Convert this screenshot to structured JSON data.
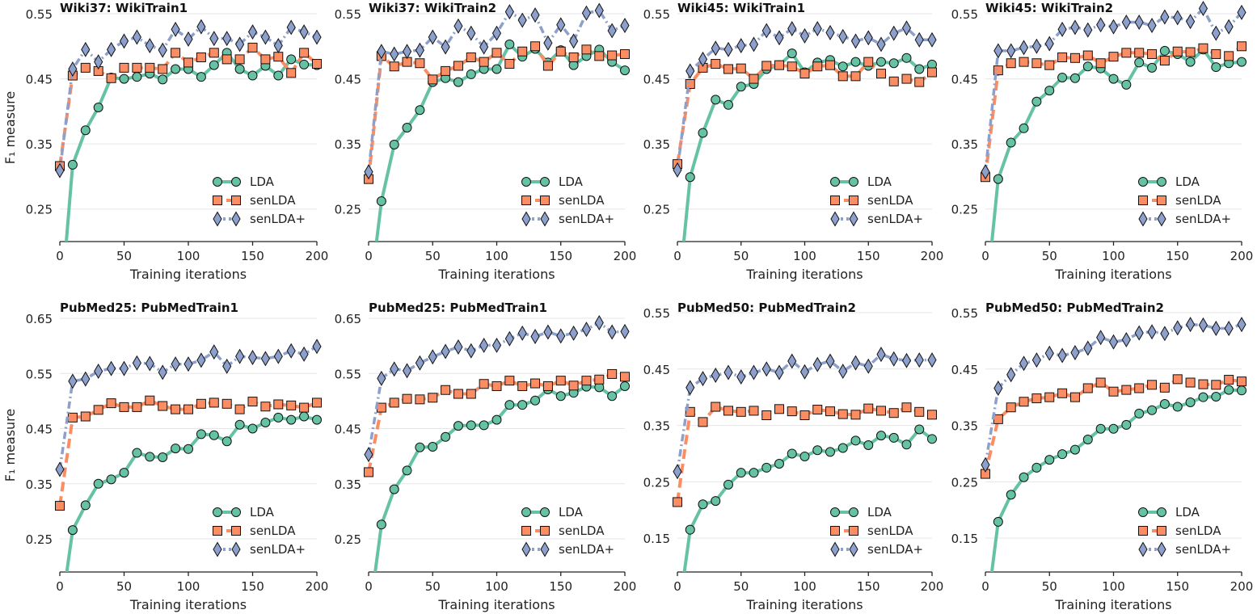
{
  "colors": {
    "LDA": "#66c2a5",
    "senLDA": "#fc8d62",
    "senLDA+": "#8da0cb",
    "grid": "#e6e6e6",
    "axis": "#222222"
  },
  "chart_data": [
    {
      "type": "line",
      "title": "Wiki37: WikiTrain1",
      "xlabel": "Training iterations",
      "ylabel": "F₁ measure",
      "xlim": [
        0,
        200
      ],
      "ylim": [
        0.2,
        0.55
      ],
      "xticks": [
        0,
        50,
        100,
        150,
        200
      ],
      "yticks": [
        0.25,
        0.35,
        0.45,
        0.55
      ],
      "grid": "horizontal",
      "legend": "lower-right",
      "x": [
        0,
        10,
        20,
        30,
        40,
        50,
        60,
        70,
        80,
        90,
        100,
        110,
        120,
        130,
        140,
        150,
        160,
        170,
        180,
        190,
        200
      ],
      "series": [
        {
          "name": "LDA",
          "marker": "circle",
          "line": "solid",
          "values": [
            0.08,
            0.318,
            0.371,
            0.406,
            0.452,
            0.45,
            0.453,
            0.458,
            0.449,
            0.465,
            0.465,
            0.453,
            0.471,
            0.49,
            0.465,
            0.455,
            0.47,
            0.455,
            0.48,
            0.472,
            0.471
          ]
        },
        {
          "name": "senLDA",
          "marker": "square",
          "line": "dashed",
          "values": [
            0.316,
            0.455,
            0.467,
            0.462,
            0.451,
            0.467,
            0.467,
            0.467,
            0.465,
            0.49,
            0.475,
            0.483,
            0.49,
            0.48,
            0.48,
            0.498,
            0.48,
            0.484,
            0.459,
            0.49,
            0.473
          ]
        },
        {
          "name": "senLDA+",
          "marker": "diamond",
          "line": "dashdot",
          "values": [
            0.309,
            0.465,
            0.495,
            0.476,
            0.495,
            0.508,
            0.514,
            0.501,
            0.494,
            0.526,
            0.511,
            0.53,
            0.512,
            0.512,
            0.503,
            0.522,
            0.514,
            0.501,
            0.529,
            0.522,
            0.514
          ]
        }
      ]
    },
    {
      "type": "line",
      "title": "Wiki37: WikiTrain2",
      "xlabel": "Training iterations",
      "ylabel": "",
      "xlim": [
        0,
        200
      ],
      "ylim": [
        0.2,
        0.55
      ],
      "xticks": [
        0,
        50,
        100,
        150,
        200
      ],
      "yticks": [
        0.25,
        0.35,
        0.45,
        0.55
      ],
      "grid": "horizontal",
      "legend": "lower-right",
      "x": [
        0,
        10,
        20,
        30,
        40,
        50,
        60,
        70,
        80,
        90,
        100,
        110,
        120,
        130,
        140,
        150,
        160,
        170,
        180,
        190,
        200
      ],
      "series": [
        {
          "name": "LDA",
          "marker": "circle",
          "line": "solid",
          "values": [
            0.1,
            0.262,
            0.349,
            0.375,
            0.402,
            0.445,
            0.451,
            0.445,
            0.457,
            0.465,
            0.465,
            0.503,
            0.484,
            0.496,
            0.475,
            0.494,
            0.471,
            0.485,
            0.495,
            0.476,
            0.463
          ]
        },
        {
          "name": "senLDA",
          "marker": "square",
          "line": "dashed",
          "values": [
            0.296,
            0.485,
            0.469,
            0.476,
            0.474,
            0.449,
            0.462,
            0.47,
            0.483,
            0.476,
            0.49,
            0.473,
            0.492,
            0.5,
            0.47,
            0.492,
            0.483,
            0.495,
            0.485,
            0.486,
            0.488
          ]
        },
        {
          "name": "senLDA+",
          "marker": "diamond",
          "line": "dashdot",
          "values": [
            0.307,
            0.492,
            0.488,
            0.492,
            0.494,
            0.514,
            0.499,
            0.531,
            0.52,
            0.499,
            0.52,
            0.553,
            0.54,
            0.548,
            0.505,
            0.533,
            0.508,
            0.551,
            0.555,
            0.524,
            0.532
          ]
        }
      ]
    },
    {
      "type": "line",
      "title": "Wiki45: WikiTrain1",
      "xlabel": "Training iterations",
      "ylabel": "",
      "xlim": [
        0,
        200
      ],
      "ylim": [
        0.2,
        0.55
      ],
      "xticks": [
        0,
        50,
        100,
        150,
        200
      ],
      "yticks": [
        0.25,
        0.35,
        0.45,
        0.55
      ],
      "grid": "horizontal",
      "legend": "lower-right",
      "x": [
        0,
        10,
        20,
        30,
        40,
        50,
        60,
        70,
        80,
        90,
        100,
        110,
        120,
        130,
        140,
        150,
        160,
        170,
        180,
        190,
        200
      ],
      "series": [
        {
          "name": "LDA",
          "marker": "circle",
          "line": "solid",
          "values": [
            0.1,
            0.299,
            0.367,
            0.418,
            0.41,
            0.438,
            0.442,
            0.465,
            0.471,
            0.489,
            0.46,
            0.475,
            0.479,
            0.469,
            0.476,
            0.47,
            0.476,
            0.474,
            0.482,
            0.465,
            0.472
          ]
        },
        {
          "name": "senLDA",
          "marker": "square",
          "line": "dashed",
          "values": [
            0.319,
            0.442,
            0.467,
            0.473,
            0.465,
            0.466,
            0.45,
            0.47,
            0.471,
            0.469,
            0.458,
            0.469,
            0.471,
            0.454,
            0.454,
            0.476,
            0.458,
            0.446,
            0.45,
            0.445,
            0.46
          ]
        },
        {
          "name": "senLDA+",
          "marker": "diamond",
          "line": "dashdot",
          "values": [
            0.31,
            0.462,
            0.48,
            0.497,
            0.495,
            0.501,
            0.503,
            0.524,
            0.513,
            0.527,
            0.516,
            0.527,
            0.521,
            0.515,
            0.508,
            0.513,
            0.503,
            0.52,
            0.528,
            0.51,
            0.51
          ]
        }
      ]
    },
    {
      "type": "line",
      "title": "Wiki45: WikiTrain2",
      "xlabel": "Training iterations",
      "ylabel": "",
      "xlim": [
        0,
        200
      ],
      "ylim": [
        0.2,
        0.55
      ],
      "xticks": [
        0,
        50,
        100,
        150,
        200
      ],
      "yticks": [
        0.25,
        0.35,
        0.45,
        0.55
      ],
      "grid": "horizontal",
      "legend": "lower-right",
      "x": [
        0,
        10,
        20,
        30,
        40,
        50,
        60,
        70,
        80,
        90,
        100,
        110,
        120,
        130,
        140,
        150,
        160,
        170,
        180,
        190,
        200
      ],
      "series": [
        {
          "name": "LDA",
          "marker": "circle",
          "line": "solid",
          "values": [
            0.1,
            0.296,
            0.352,
            0.374,
            0.415,
            0.432,
            0.452,
            0.451,
            0.469,
            0.466,
            0.45,
            0.441,
            0.475,
            0.467,
            0.493,
            0.488,
            0.476,
            0.495,
            0.468,
            0.474,
            0.476
          ]
        },
        {
          "name": "senLDA",
          "marker": "square",
          "line": "dashed",
          "values": [
            0.299,
            0.463,
            0.474,
            0.476,
            0.474,
            0.471,
            0.483,
            0.482,
            0.486,
            0.474,
            0.484,
            0.49,
            0.49,
            0.488,
            0.478,
            0.492,
            0.491,
            0.497,
            0.488,
            0.485,
            0.5
          ]
        },
        {
          "name": "senLDA+",
          "marker": "diamond",
          "line": "dashdot",
          "values": [
            0.307,
            0.493,
            0.493,
            0.498,
            0.5,
            0.504,
            0.526,
            0.529,
            0.525,
            0.533,
            0.53,
            0.537,
            0.537,
            0.532,
            0.545,
            0.544,
            0.538,
            0.558,
            0.52,
            0.53,
            0.552
          ]
        }
      ]
    },
    {
      "type": "line",
      "title": "PubMed25: PubMedTrain1",
      "xlabel": "Training iterations",
      "ylabel": "F₁ measure",
      "xlim": [
        0,
        200
      ],
      "ylim": [
        0.19,
        0.65
      ],
      "xticks": [
        0,
        50,
        100,
        150,
        200
      ],
      "yticks": [
        0.25,
        0.35,
        0.45,
        0.55,
        0.65
      ],
      "grid": "horizontal",
      "legend": "lower-right",
      "x": [
        0,
        10,
        20,
        30,
        40,
        50,
        60,
        70,
        80,
        90,
        100,
        110,
        120,
        130,
        140,
        150,
        160,
        170,
        180,
        190,
        200
      ],
      "series": [
        {
          "name": "LDA",
          "marker": "circle",
          "line": "solid",
          "values": [
            0.1,
            0.266,
            0.311,
            0.35,
            0.358,
            0.37,
            0.406,
            0.399,
            0.398,
            0.414,
            0.413,
            0.44,
            0.438,
            0.427,
            0.457,
            0.45,
            0.461,
            0.47,
            0.466,
            0.472,
            0.466
          ]
        },
        {
          "name": "senLDA",
          "marker": "square",
          "line": "dashed",
          "values": [
            0.31,
            0.47,
            0.472,
            0.484,
            0.496,
            0.489,
            0.489,
            0.501,
            0.491,
            0.485,
            0.485,
            0.495,
            0.497,
            0.495,
            0.485,
            0.499,
            0.49,
            0.494,
            0.492,
            0.488,
            0.497
          ]
        },
        {
          "name": "senLDA+",
          "marker": "diamond",
          "line": "dashdot",
          "values": [
            0.376,
            0.536,
            0.54,
            0.554,
            0.559,
            0.559,
            0.569,
            0.568,
            0.552,
            0.567,
            0.567,
            0.574,
            0.589,
            0.563,
            0.581,
            0.579,
            0.577,
            0.581,
            0.591,
            0.585,
            0.599
          ]
        }
      ]
    },
    {
      "type": "line",
      "title": "PubMed25: PubMedTrain1",
      "xlabel": "Training iterations",
      "ylabel": "",
      "xlim": [
        0,
        200
      ],
      "ylim": [
        0.19,
        0.65
      ],
      "xticks": [
        0,
        50,
        100,
        150,
        200
      ],
      "yticks": [
        0.25,
        0.35,
        0.45,
        0.55,
        0.65
      ],
      "grid": "horizontal",
      "legend": "lower-right",
      "x": [
        0,
        10,
        20,
        30,
        40,
        50,
        60,
        70,
        80,
        90,
        100,
        110,
        120,
        130,
        140,
        150,
        160,
        170,
        180,
        190,
        200
      ],
      "series": [
        {
          "name": "LDA",
          "marker": "circle",
          "line": "solid",
          "values": [
            0.1,
            0.276,
            0.34,
            0.374,
            0.416,
            0.417,
            0.435,
            0.455,
            0.456,
            0.456,
            0.466,
            0.493,
            0.493,
            0.501,
            0.521,
            0.509,
            0.515,
            0.526,
            0.525,
            0.509,
            0.527
          ]
        },
        {
          "name": "senLDA",
          "marker": "square",
          "line": "dashed",
          "values": [
            0.371,
            0.488,
            0.497,
            0.504,
            0.503,
            0.506,
            0.52,
            0.513,
            0.513,
            0.531,
            0.527,
            0.537,
            0.527,
            0.532,
            0.527,
            0.537,
            0.528,
            0.537,
            0.539,
            0.549,
            0.544
          ]
        },
        {
          "name": "senLDA+",
          "marker": "diamond",
          "line": "dashdot",
          "values": [
            0.403,
            0.541,
            0.558,
            0.555,
            0.569,
            0.58,
            0.59,
            0.598,
            0.591,
            0.601,
            0.601,
            0.613,
            0.623,
            0.617,
            0.625,
            0.618,
            0.623,
            0.63,
            0.642,
            0.625,
            0.626
          ]
        }
      ]
    },
    {
      "type": "line",
      "title": "PubMed50: PubMedTrain2",
      "xlabel": "Training iterations",
      "ylabel": "",
      "xlim": [
        0,
        200
      ],
      "ylim": [
        0.09,
        0.55
      ],
      "xticks": [
        0,
        50,
        100,
        150,
        200
      ],
      "yticks": [
        0.15,
        0.25,
        0.35,
        0.45,
        0.55
      ],
      "grid": "horizontal",
      "legend": "lower-right",
      "x": [
        0,
        10,
        20,
        30,
        40,
        50,
        60,
        70,
        80,
        90,
        100,
        110,
        120,
        130,
        140,
        150,
        160,
        170,
        180,
        190,
        200
      ],
      "series": [
        {
          "name": "LDA",
          "marker": "circle",
          "line": "solid",
          "values": [
            0.0,
            0.165,
            0.21,
            0.216,
            0.245,
            0.266,
            0.266,
            0.275,
            0.282,
            0.3,
            0.295,
            0.306,
            0.303,
            0.31,
            0.323,
            0.315,
            0.332,
            0.328,
            0.316,
            0.343,
            0.326
          ]
        },
        {
          "name": "senLDA",
          "marker": "square",
          "line": "dashed",
          "values": [
            0.214,
            0.374,
            0.356,
            0.383,
            0.376,
            0.374,
            0.376,
            0.368,
            0.379,
            0.375,
            0.368,
            0.378,
            0.375,
            0.37,
            0.369,
            0.38,
            0.376,
            0.372,
            0.382,
            0.374,
            0.369
          ]
        },
        {
          "name": "senLDA+",
          "marker": "diamond",
          "line": "dashdot",
          "values": [
            0.268,
            0.417,
            0.433,
            0.439,
            0.444,
            0.436,
            0.444,
            0.45,
            0.444,
            0.464,
            0.445,
            0.458,
            0.464,
            0.446,
            0.461,
            0.455,
            0.476,
            0.468,
            0.465,
            0.466,
            0.466
          ]
        }
      ]
    },
    {
      "type": "line",
      "title": "PubMed50: PubMedTrain2",
      "xlabel": "Training iterations",
      "ylabel": "",
      "xlim": [
        0,
        200
      ],
      "ylim": [
        0.09,
        0.55
      ],
      "xticks": [
        0,
        50,
        100,
        150,
        200
      ],
      "yticks": [
        0.15,
        0.25,
        0.35,
        0.45,
        0.55
      ],
      "grid": "horizontal",
      "legend": "lower-right",
      "x": [
        0,
        10,
        20,
        30,
        40,
        50,
        60,
        70,
        80,
        90,
        100,
        110,
        120,
        130,
        140,
        150,
        160,
        170,
        180,
        190,
        200
      ],
      "series": [
        {
          "name": "LDA",
          "marker": "circle",
          "line": "solid",
          "values": [
            0.0,
            0.179,
            0.227,
            0.258,
            0.275,
            0.289,
            0.299,
            0.307,
            0.325,
            0.344,
            0.344,
            0.351,
            0.371,
            0.377,
            0.388,
            0.383,
            0.391,
            0.4,
            0.401,
            0.413,
            0.412
          ]
        },
        {
          "name": "senLDA",
          "marker": "square",
          "line": "dashed",
          "values": [
            0.264,
            0.361,
            0.382,
            0.392,
            0.398,
            0.4,
            0.407,
            0.4,
            0.416,
            0.426,
            0.41,
            0.413,
            0.416,
            0.422,
            0.417,
            0.432,
            0.426,
            0.423,
            0.422,
            0.431,
            0.428
          ]
        },
        {
          "name": "senLDA+",
          "marker": "diamond",
          "line": "dashdot",
          "values": [
            0.28,
            0.416,
            0.44,
            0.46,
            0.466,
            0.478,
            0.474,
            0.479,
            0.487,
            0.506,
            0.498,
            0.502,
            0.514,
            0.516,
            0.513,
            0.523,
            0.529,
            0.528,
            0.522,
            0.522,
            0.529
          ]
        }
      ]
    }
  ]
}
